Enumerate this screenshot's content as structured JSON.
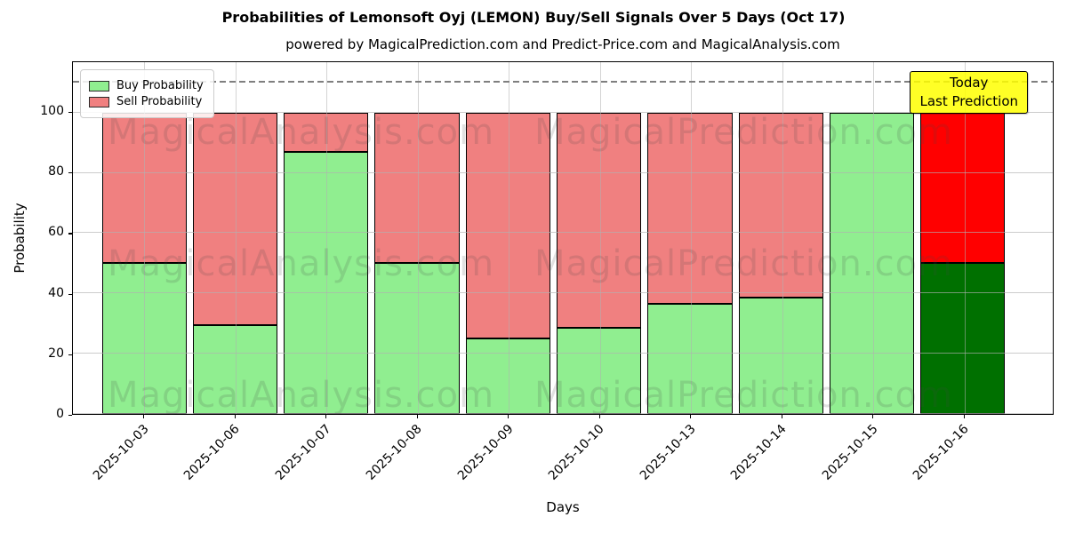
{
  "title": "Probabilities of Lemonsoft Oyj (LEMON) Buy/Sell Signals Over 5 Days (Oct 17)",
  "subtitle": "powered by MagicalPrediction.com and Predict-Price.com and MagicalAnalysis.com",
  "legend": {
    "items": [
      {
        "label": "Buy Probability",
        "color": "#90ee90"
      },
      {
        "label": "Sell Probability",
        "color": "#f08080"
      }
    ]
  },
  "annotation": {
    "lines": [
      "Today",
      "Last Prediction"
    ],
    "bg_color": "#ffff00"
  },
  "watermarks": {
    "left_text": "MagicalAnalysis.com",
    "right_text": "MagicalPrediction.com"
  },
  "chart_data": {
    "type": "bar",
    "stacked": true,
    "title": "Probabilities of Lemonsoft Oyj (LEMON) Buy/Sell Signals Over 5 Days (Oct 17)",
    "xlabel": "Days",
    "ylabel": "Probability",
    "categories": [
      "2025-10-03",
      "2025-10-06",
      "2025-10-07",
      "2025-10-08",
      "2025-10-09",
      "2025-10-10",
      "2025-10-13",
      "2025-10-14",
      "2025-10-15",
      "2025-10-16"
    ],
    "series": [
      {
        "name": "Buy Probability",
        "values": [
          50,
          29.5,
          87,
          50,
          25,
          28.5,
          36.5,
          38.5,
          100,
          50
        ]
      },
      {
        "name": "Sell Probability",
        "values": [
          50,
          70.5,
          13,
          50,
          75,
          71.5,
          63.5,
          61.5,
          0,
          50
        ]
      }
    ],
    "today_index": 9,
    "colors": {
      "buy_default": "#90ee90",
      "sell_default": "#f08080",
      "buy_today": "#007000",
      "sell_today": "#ff0000",
      "grid": "#b0b0b0",
      "dashed_line": "#7f7f7f"
    },
    "yticks": [
      0,
      20,
      40,
      60,
      80,
      100
    ],
    "ylim": [
      0,
      116.7
    ],
    "dashed_line_y": 110,
    "grid": true,
    "legend_position": "upper-left"
  }
}
